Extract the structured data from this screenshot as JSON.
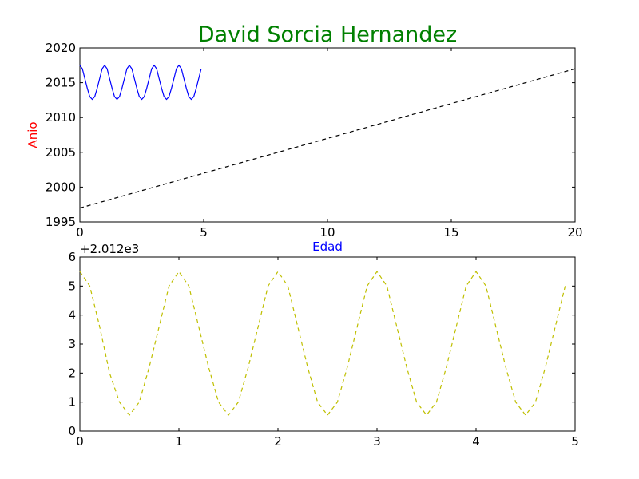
{
  "title": "David Sorcia Hernandez",
  "colors": {
    "title": "#008000",
    "ylabel": "#ff0000",
    "xlabel": "#0000ff",
    "line_solid": "#0000ff",
    "line_dashed_black": "#000000",
    "line_dashed_yellow": "#bfbf00"
  },
  "chart_data": [
    {
      "type": "line",
      "title": "David Sorcia Hernandez",
      "xlabel": "Edad",
      "ylabel": "Anio",
      "xlim": [
        0,
        20
      ],
      "ylim": [
        1995,
        2020
      ],
      "xticks": [
        "0",
        "5",
        "10",
        "15",
        "20"
      ],
      "yticks": [
        "1995",
        "2000",
        "2005",
        "2010",
        "2015",
        "2020"
      ],
      "grid": false,
      "series": [
        {
          "style": "solid",
          "color": "#0000ff",
          "x": [
            0.0,
            0.1,
            0.2,
            0.3,
            0.4,
            0.5,
            0.6,
            0.7,
            0.8,
            0.9,
            1.0,
            1.1,
            1.2,
            1.3,
            1.4,
            1.5,
            1.6,
            1.7,
            1.8,
            1.9,
            2.0,
            2.1,
            2.2,
            2.3,
            2.4,
            2.5,
            2.6,
            2.7,
            2.8,
            2.9,
            3.0,
            3.1,
            3.2,
            3.3,
            3.4,
            3.5,
            3.6,
            3.7,
            3.8,
            3.9,
            4.0,
            4.1,
            4.2,
            4.3,
            4.4,
            4.5,
            4.6,
            4.7,
            4.8,
            4.9
          ],
          "y": [
            2017.5,
            2017.0,
            2015.6,
            2014.2,
            2013.0,
            2012.6,
            2013.0,
            2014.2,
            2015.6,
            2017.0,
            2017.5,
            2017.0,
            2015.6,
            2014.2,
            2013.0,
            2012.6,
            2013.0,
            2014.2,
            2015.6,
            2017.0,
            2017.5,
            2017.0,
            2015.6,
            2014.2,
            2013.0,
            2012.6,
            2013.0,
            2014.2,
            2015.6,
            2017.0,
            2017.5,
            2017.0,
            2015.6,
            2014.2,
            2013.0,
            2012.6,
            2013.0,
            2014.2,
            2015.6,
            2017.0,
            2017.5,
            2017.0,
            2015.6,
            2014.2,
            2013.0,
            2012.6,
            2013.0,
            2014.2,
            2015.6,
            2017.0
          ]
        },
        {
          "style": "dashed",
          "color": "#000000",
          "x": [
            0,
            20
          ],
          "y": [
            1997,
            2017
          ]
        }
      ]
    },
    {
      "type": "line",
      "xlabel": "",
      "ylabel": "",
      "offset_label": "+2.012e3",
      "xlim": [
        0,
        5
      ],
      "ylim": [
        0,
        6
      ],
      "xticks": [
        "0",
        "1",
        "2",
        "3",
        "4",
        "5"
      ],
      "yticks": [
        "0",
        "1",
        "2",
        "3",
        "4",
        "5",
        "6"
      ],
      "grid": false,
      "series": [
        {
          "style": "dashed",
          "color": "#bfbf00",
          "x": [
            0.0,
            0.1,
            0.2,
            0.3,
            0.4,
            0.5,
            0.6,
            0.7,
            0.8,
            0.9,
            1.0,
            1.1,
            1.2,
            1.3,
            1.4,
            1.5,
            1.6,
            1.7,
            1.8,
            1.9,
            2.0,
            2.1,
            2.2,
            2.3,
            2.4,
            2.5,
            2.6,
            2.7,
            2.8,
            2.9,
            3.0,
            3.1,
            3.2,
            3.3,
            3.4,
            3.5,
            3.6,
            3.7,
            3.8,
            3.9,
            4.0,
            4.1,
            4.2,
            4.3,
            4.4,
            4.5,
            4.6,
            4.7,
            4.8,
            4.9
          ],
          "y": [
            5.5,
            5.0,
            3.6,
            2.0,
            1.0,
            0.55,
            1.0,
            2.2,
            3.6,
            5.0,
            5.5,
            5.0,
            3.6,
            2.2,
            1.0,
            0.55,
            1.0,
            2.2,
            3.6,
            5.0,
            5.5,
            5.0,
            3.6,
            2.2,
            1.0,
            0.55,
            1.0,
            2.2,
            3.6,
            5.0,
            5.5,
            5.0,
            3.6,
            2.2,
            1.0,
            0.55,
            1.0,
            2.2,
            3.6,
            5.0,
            5.5,
            5.0,
            3.6,
            2.2,
            1.0,
            0.55,
            1.0,
            2.2,
            3.6,
            5.0
          ]
        }
      ]
    }
  ]
}
